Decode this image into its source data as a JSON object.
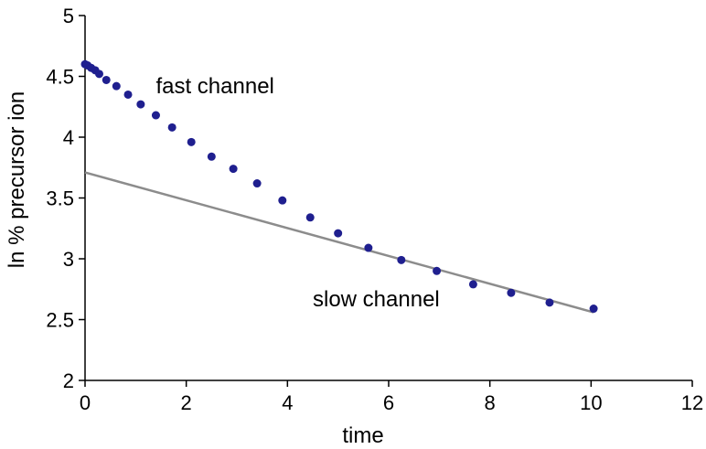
{
  "chart_data": {
    "type": "scatter",
    "title": "",
    "xlabel": "time",
    "ylabel": "ln % precursor ion",
    "xlim": [
      0,
      12
    ],
    "ylim": [
      2,
      5
    ],
    "x_ticks": [
      0,
      2,
      4,
      6,
      8,
      10,
      12
    ],
    "y_ticks": [
      2,
      2.5,
      3,
      3.5,
      4,
      4.5,
      5
    ],
    "x_tick_labels": [
      "0",
      "2",
      "4",
      "6",
      "8",
      "10",
      "12"
    ],
    "y_tick_labels": [
      "2",
      "2.5",
      "3",
      "3.5",
      "4",
      "4.5",
      "5"
    ],
    "grid": false,
    "legend": "none",
    "points": {
      "color": "#1f1f8f",
      "x": [
        0,
        0.05,
        0.12,
        0.2,
        0.28,
        0.42,
        0.62,
        0.85,
        1.1,
        1.4,
        1.72,
        2.1,
        2.5,
        2.93,
        3.4,
        3.9,
        4.45,
        5.0,
        5.6,
        6.25,
        6.95,
        7.67,
        8.42,
        9.18,
        10.05
      ],
      "y": [
        4.6,
        4.59,
        4.57,
        4.55,
        4.52,
        4.47,
        4.42,
        4.35,
        4.27,
        4.18,
        4.08,
        3.96,
        3.84,
        3.74,
        3.62,
        3.48,
        3.34,
        3.21,
        3.09,
        2.99,
        2.9,
        2.79,
        2.72,
        2.64,
        2.59
      ]
    },
    "line": {
      "color": "#8c8c8c",
      "x": [
        0,
        10.05
      ],
      "y": [
        3.71,
        2.56
      ]
    },
    "annotations": [
      {
        "text": "fast channel",
        "x": 1.4,
        "y": 4.36
      },
      {
        "text": "slow channel",
        "x": 4.5,
        "y": 2.61
      }
    ]
  }
}
